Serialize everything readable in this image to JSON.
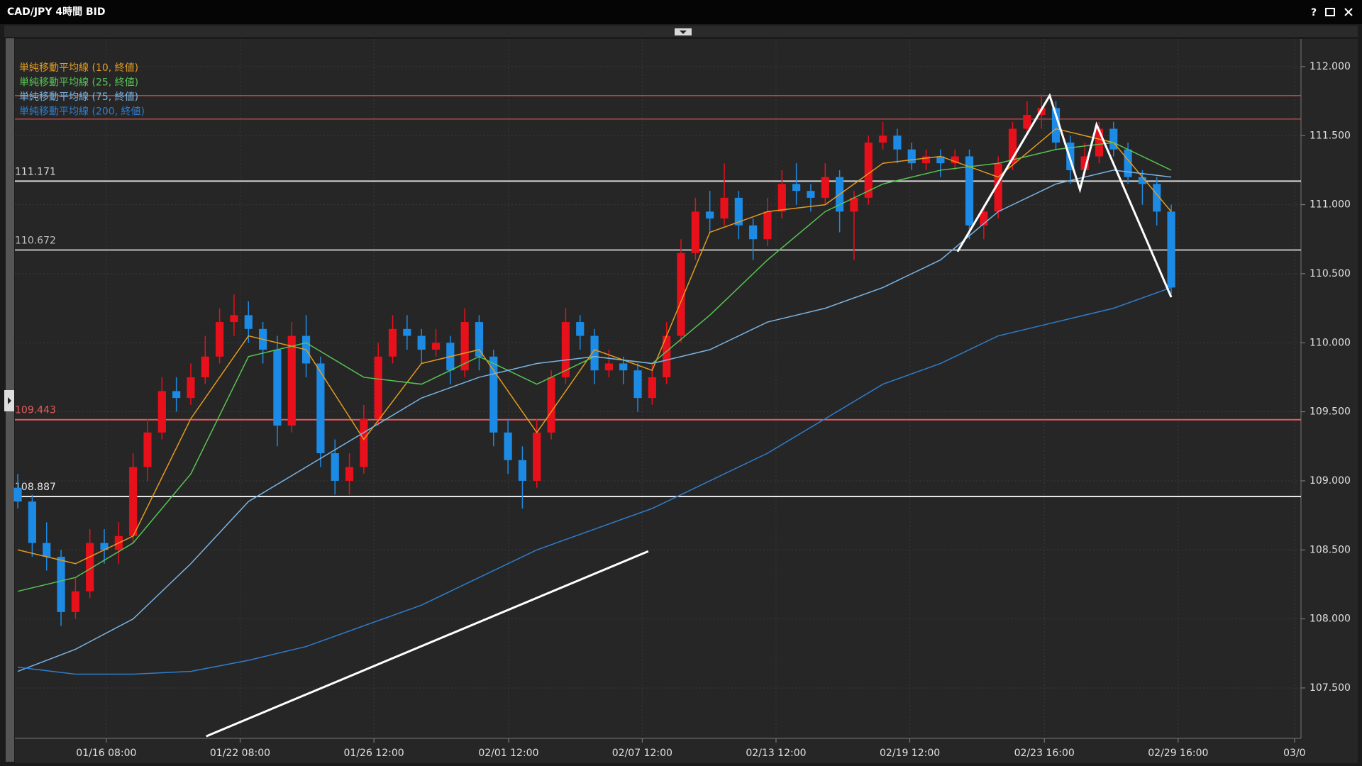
{
  "chart_data": {
    "type": "candlestick",
    "title": "CAD/JPY 4時間 BID",
    "help": "?",
    "up_color": "#e8101a",
    "down_color": "#1c8be6",
    "xlim": [
      -0.2,
      89
    ],
    "ylim": [
      107.135,
      112.2
    ],
    "xticks": [
      {
        "value": 6.14,
        "label": "01/16 08:00"
      },
      {
        "value": 15.42,
        "label": "01/22 08:00"
      },
      {
        "value": 24.7,
        "label": "01/26 12:00"
      },
      {
        "value": 34.04,
        "label": "02/01 12:00"
      },
      {
        "value": 43.31,
        "label": "02/07 12:00"
      },
      {
        "value": 52.59,
        "label": "02/13 12:00"
      },
      {
        "value": 61.87,
        "label": "02/19 12:00"
      },
      {
        "value": 71.2,
        "label": "02/23 16:00"
      },
      {
        "value": 80.48,
        "label": "02/29 16:00"
      },
      {
        "value": 88.55,
        "label": "03/0"
      }
    ],
    "yticks": [
      {
        "value": 107.5,
        "label": "107.500"
      },
      {
        "value": 108,
        "label": "108.000"
      },
      {
        "value": 108.5,
        "label": "108.500"
      },
      {
        "value": 109,
        "label": "109.000"
      },
      {
        "value": 109.5,
        "label": "109.500"
      },
      {
        "value": 110,
        "label": "110.000"
      },
      {
        "value": 110.5,
        "label": "110.500"
      },
      {
        "value": 111,
        "label": "111.000"
      },
      {
        "value": 111.5,
        "label": "111.500"
      },
      {
        "value": 112,
        "label": "112.000"
      }
    ],
    "grid": true,
    "candles": [
      [
        108.95,
        109.05,
        108.8,
        108.85
      ],
      [
        108.85,
        108.9,
        108.45,
        108.55
      ],
      [
        108.55,
        108.7,
        108.35,
        108.45
      ],
      [
        108.45,
        108.5,
        107.95,
        108.05
      ],
      [
        108.05,
        108.3,
        108.0,
        108.2
      ],
      [
        108.2,
        108.65,
        108.15,
        108.55
      ],
      [
        108.55,
        108.65,
        108.4,
        108.5
      ],
      [
        108.5,
        108.7,
        108.4,
        108.6
      ],
      [
        108.6,
        109.2,
        108.55,
        109.1
      ],
      [
        109.1,
        109.45,
        109.0,
        109.35
      ],
      [
        109.35,
        109.75,
        109.3,
        109.65
      ],
      [
        109.65,
        109.75,
        109.5,
        109.6
      ],
      [
        109.6,
        109.85,
        109.55,
        109.75
      ],
      [
        109.75,
        110.05,
        109.7,
        109.9
      ],
      [
        109.9,
        110.25,
        109.85,
        110.15
      ],
      [
        110.15,
        110.35,
        110.05,
        110.2
      ],
      [
        110.2,
        110.3,
        110.0,
        110.1
      ],
      [
        110.1,
        110.15,
        109.85,
        109.95
      ],
      [
        109.95,
        110.05,
        109.25,
        109.4
      ],
      [
        109.4,
        110.15,
        109.35,
        110.05
      ],
      [
        110.05,
        110.2,
        109.75,
        109.85
      ],
      [
        109.85,
        109.9,
        109.1,
        109.2
      ],
      [
        109.2,
        109.3,
        108.9,
        109.0
      ],
      [
        109.0,
        109.2,
        108.9,
        109.1
      ],
      [
        109.1,
        109.55,
        109.05,
        109.45
      ],
      [
        109.45,
        110.0,
        109.4,
        109.9
      ],
      [
        109.9,
        110.2,
        109.85,
        110.1
      ],
      [
        110.1,
        110.2,
        109.95,
        110.05
      ],
      [
        110.05,
        110.1,
        109.85,
        109.95
      ],
      [
        109.95,
        110.1,
        109.9,
        110.0
      ],
      [
        110.0,
        110.05,
        109.7,
        109.8
      ],
      [
        109.8,
        110.25,
        109.75,
        110.15
      ],
      [
        110.15,
        110.2,
        109.8,
        109.9
      ],
      [
        109.9,
        109.95,
        109.25,
        109.35
      ],
      [
        109.35,
        109.45,
        109.05,
        109.15
      ],
      [
        109.15,
        109.25,
        108.8,
        109.0
      ],
      [
        109.0,
        109.45,
        108.95,
        109.35
      ],
      [
        109.35,
        109.8,
        109.3,
        109.75
      ],
      [
        109.75,
        110.25,
        109.7,
        110.15
      ],
      [
        110.15,
        110.2,
        109.95,
        110.05
      ],
      [
        110.05,
        110.1,
        109.7,
        109.8
      ],
      [
        109.8,
        109.95,
        109.75,
        109.85
      ],
      [
        109.85,
        109.9,
        109.7,
        109.8
      ],
      [
        109.8,
        109.85,
        109.5,
        109.6
      ],
      [
        109.6,
        109.85,
        109.55,
        109.75
      ],
      [
        109.75,
        110.15,
        109.7,
        110.05
      ],
      [
        110.05,
        110.75,
        110.0,
        110.65
      ],
      [
        110.65,
        111.05,
        110.6,
        110.95
      ],
      [
        110.95,
        111.1,
        110.8,
        110.9
      ],
      [
        110.9,
        111.3,
        110.85,
        111.05
      ],
      [
        111.05,
        111.1,
        110.75,
        110.85
      ],
      [
        110.85,
        110.9,
        110.6,
        110.75
      ],
      [
        110.75,
        111.05,
        110.7,
        110.95
      ],
      [
        110.95,
        111.25,
        110.9,
        111.15
      ],
      [
        111.15,
        111.3,
        111.0,
        111.1
      ],
      [
        111.1,
        111.15,
        110.95,
        111.05
      ],
      [
        111.05,
        111.3,
        111.0,
        111.2
      ],
      [
        111.2,
        111.25,
        110.8,
        110.95
      ],
      [
        110.95,
        111.1,
        110.6,
        111.05
      ],
      [
        111.05,
        111.5,
        111.0,
        111.45
      ],
      [
        111.45,
        111.6,
        111.4,
        111.5
      ],
      [
        111.5,
        111.55,
        111.3,
        111.4
      ],
      [
        111.4,
        111.45,
        111.25,
        111.3
      ],
      [
        111.3,
        111.4,
        111.25,
        111.35
      ],
      [
        111.35,
        111.4,
        111.2,
        111.3
      ],
      [
        111.3,
        111.4,
        111.25,
        111.35
      ],
      [
        111.35,
        111.4,
        110.75,
        110.85
      ],
      [
        110.85,
        111.0,
        110.75,
        110.95
      ],
      [
        110.95,
        111.35,
        110.9,
        111.3
      ],
      [
        111.3,
        111.6,
        111.25,
        111.55
      ],
      [
        111.55,
        111.75,
        111.5,
        111.65
      ],
      [
        111.65,
        111.8,
        111.55,
        111.7
      ],
      [
        111.7,
        111.75,
        111.4,
        111.45
      ],
      [
        111.45,
        111.5,
        111.15,
        111.25
      ],
      [
        111.25,
        111.45,
        111.2,
        111.35
      ],
      [
        111.35,
        111.6,
        111.3,
        111.55
      ],
      [
        111.55,
        111.6,
        111.35,
        111.4
      ],
      [
        111.4,
        111.45,
        111.15,
        111.2
      ],
      [
        111.2,
        111.25,
        111.0,
        111.15
      ],
      [
        111.15,
        111.2,
        110.85,
        110.95
      ],
      [
        110.95,
        111.0,
        110.35,
        110.4
      ]
    ],
    "x": [
      0,
      4,
      8,
      12,
      16,
      20,
      24,
      28,
      32,
      36,
      40,
      44,
      48,
      52,
      56,
      60,
      64,
      68,
      72,
      76,
      80
    ],
    "series": [
      {
        "name": "単純移動平均線 (10, 終値)",
        "color": "#e39b1e",
        "values": [
          108.5,
          108.4,
          108.6,
          109.45,
          110.05,
          109.95,
          109.3,
          109.85,
          109.95,
          109.35,
          109.95,
          109.8,
          110.8,
          110.95,
          111.0,
          111.3,
          111.35,
          111.2,
          111.55,
          111.45,
          110.95
        ]
      },
      {
        "name": "単純移動平均線 (25, 終値)",
        "color": "#56c452",
        "values": [
          108.2,
          108.3,
          108.55,
          109.05,
          109.9,
          110.0,
          109.75,
          109.7,
          109.9,
          109.7,
          109.9,
          109.85,
          110.2,
          110.6,
          110.95,
          111.15,
          111.25,
          111.3,
          111.4,
          111.45,
          111.25
        ]
      },
      {
        "name": "単純移動平均線 (75, 終値)",
        "color": "#7ab4e4",
        "values": [
          107.62,
          107.78,
          108.0,
          108.4,
          108.85,
          109.1,
          109.35,
          109.6,
          109.75,
          109.85,
          109.9,
          109.85,
          109.95,
          110.15,
          110.25,
          110.4,
          110.6,
          110.95,
          111.15,
          111.25,
          111.2
        ]
      },
      {
        "name": "単純移動平均線 (200, 終値)",
        "color": "#2f7dcc",
        "values": [
          107.65,
          107.6,
          107.6,
          107.62,
          107.7,
          107.8,
          107.95,
          108.1,
          108.3,
          108.5,
          108.65,
          108.8,
          109.0,
          109.2,
          109.45,
          109.7,
          109.85,
          110.05,
          110.15,
          110.25,
          110.4
        ]
      }
    ],
    "levels": [
      {
        "value": 111.171,
        "color": "#d8d8d8"
      },
      {
        "value": 110.672,
        "color": "#bdbdbd"
      },
      {
        "value": 109.443,
        "color": "#e85a5a"
      },
      {
        "value": 108.887,
        "color": "#e8e8e8"
      }
    ],
    "unlabeled_levels": [
      {
        "value": 111.79,
        "color": "#c0504d"
      },
      {
        "value": 111.62,
        "color": "#c0504d"
      }
    ],
    "drawings": [
      {
        "x": [
          13.07,
          43.73
        ],
        "y": [
          107.15,
          108.49
        ]
      },
      {
        "x": [
          65.18,
          71.57,
          73.67,
          74.82,
          80.0
        ],
        "y": [
          110.66,
          111.79,
          111.11,
          111.58,
          110.33
        ]
      }
    ]
  }
}
